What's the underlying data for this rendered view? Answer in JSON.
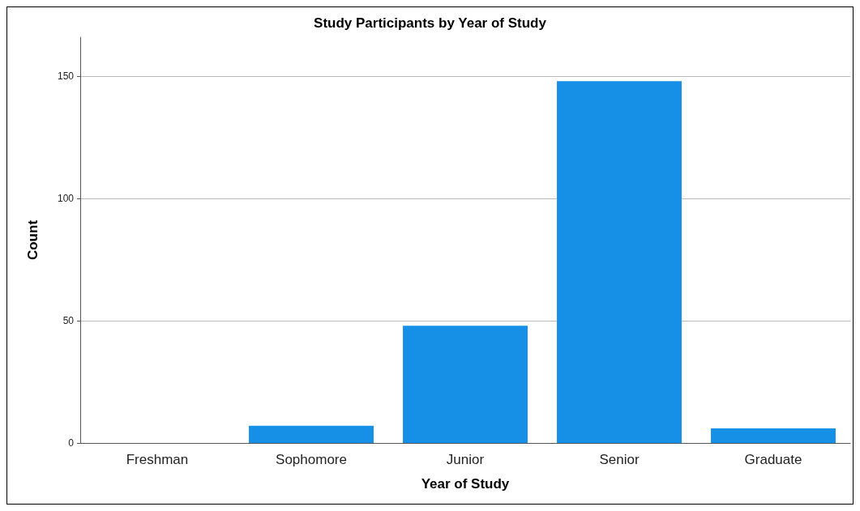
{
  "chart_data": {
    "type": "bar",
    "title": "Study Participants by Year of Study",
    "xlabel": "Year of Study",
    "ylabel": "Count",
    "categories": [
      "Freshman",
      "Sophomore",
      "Junior",
      "Senior",
      "Graduate"
    ],
    "values": [
      0,
      7,
      48,
      148,
      6
    ],
    "color": "#1590e6",
    "ylim": [
      0,
      166
    ],
    "yticks": [
      0,
      50,
      100,
      150
    ],
    "grid": "y"
  }
}
